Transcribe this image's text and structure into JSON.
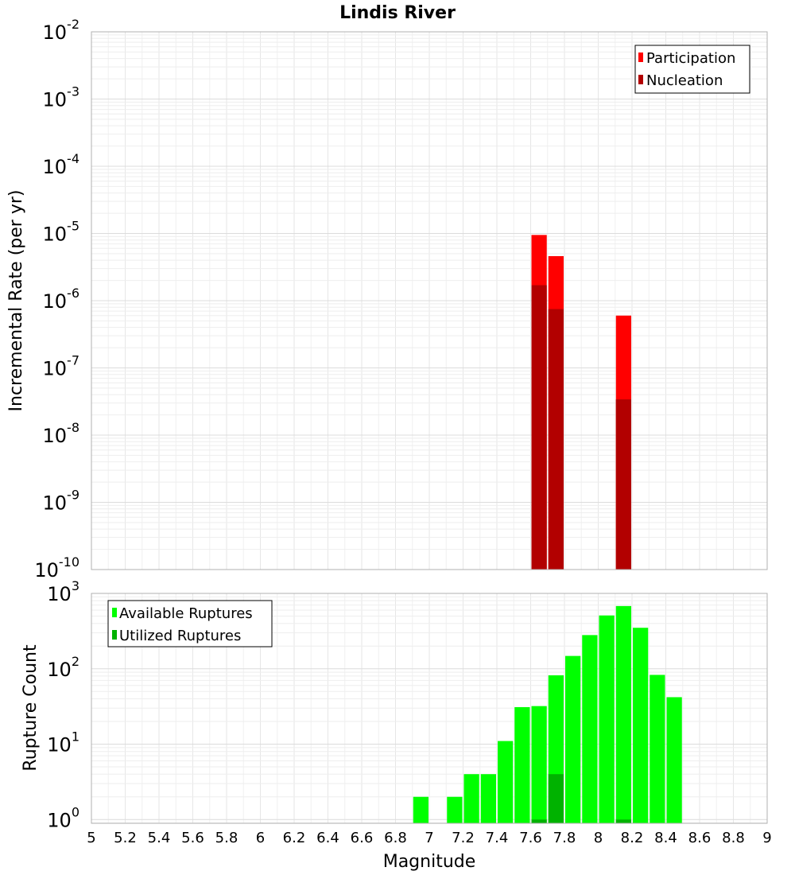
{
  "chart_data": [
    {
      "type": "bar",
      "title": "Lindis River",
      "xlabel": "",
      "ylabel": "Incremental Rate (per yr)",
      "yscale": "log",
      "xlim": [
        5,
        9
      ],
      "ylim_exponents": [
        -10,
        -2
      ],
      "ytick_labels": [
        {
          "exp": -2,
          "base": "10",
          "sup": "-2"
        },
        {
          "exp": -3,
          "base": "10",
          "sup": "-3"
        },
        {
          "exp": -4,
          "base": "10",
          "sup": "-4"
        },
        {
          "exp": -5,
          "base": "10",
          "sup": "-5"
        },
        {
          "exp": -6,
          "base": "10",
          "sup": "-6"
        },
        {
          "exp": -7,
          "base": "10",
          "sup": "-7"
        },
        {
          "exp": -8,
          "base": "10",
          "sup": "-8"
        },
        {
          "exp": -9,
          "base": "10",
          "sup": "-9"
        },
        {
          "exp": -10,
          "base": "10",
          "sup": "-10"
        }
      ],
      "bin_width": 0.1,
      "legend_position": "top-right",
      "series": [
        {
          "name": "Participation",
          "color": "#ff0000",
          "points": [
            {
              "x": 7.65,
              "y": 9.5e-06
            },
            {
              "x": 7.75,
              "y": 4.6e-06
            },
            {
              "x": 8.15,
              "y": 6e-07
            }
          ]
        },
        {
          "name": "Nucleation",
          "color": "#b20000",
          "points": [
            {
              "x": 7.65,
              "y": 1.7e-06
            },
            {
              "x": 7.75,
              "y": 7.5e-07
            },
            {
              "x": 8.15,
              "y": 3.4e-08
            }
          ]
        }
      ]
    },
    {
      "type": "bar",
      "title": "",
      "xlabel": "Magnitude",
      "ylabel": "Rupture Count",
      "yscale": "log",
      "xlim": [
        5,
        9
      ],
      "ylim_exponents": [
        -0.05,
        3
      ],
      "ytick_labels": [
        {
          "exp": 3,
          "base": "10",
          "sup": "3"
        },
        {
          "exp": 2,
          "base": "10",
          "sup": "2"
        },
        {
          "exp": 1,
          "base": "10",
          "sup": "1"
        },
        {
          "exp": 0,
          "base": "10",
          "sup": "0"
        }
      ],
      "xtick_labels": [
        "5",
        "5.2",
        "5.4",
        "5.6",
        "5.8",
        "6",
        "6.2",
        "6.4",
        "6.6",
        "6.8",
        "7",
        "7.2",
        "7.4",
        "7.6",
        "7.8",
        "8",
        "8.2",
        "8.4",
        "8.6",
        "8.8",
        "9"
      ],
      "bin_width": 0.1,
      "legend_position": "top-left",
      "series": [
        {
          "name": "Available Ruptures",
          "color": "#00ff00",
          "points": [
            {
              "x": 6.95,
              "y": 2
            },
            {
              "x": 7.15,
              "y": 2
            },
            {
              "x": 7.25,
              "y": 4
            },
            {
              "x": 7.35,
              "y": 4
            },
            {
              "x": 7.45,
              "y": 11
            },
            {
              "x": 7.55,
              "y": 31
            },
            {
              "x": 7.65,
              "y": 32
            },
            {
              "x": 7.75,
              "y": 82
            },
            {
              "x": 7.85,
              "y": 148
            },
            {
              "x": 7.95,
              "y": 280
            },
            {
              "x": 8.05,
              "y": 510
            },
            {
              "x": 8.15,
              "y": 680
            },
            {
              "x": 8.25,
              "y": 350
            },
            {
              "x": 8.35,
              "y": 83
            },
            {
              "x": 8.45,
              "y": 42
            }
          ]
        },
        {
          "name": "Utilized Ruptures",
          "color": "#00b200",
          "points": [
            {
              "x": 7.65,
              "y": 1
            },
            {
              "x": 7.75,
              "y": 4
            },
            {
              "x": 8.15,
              "y": 1
            }
          ]
        }
      ]
    }
  ]
}
